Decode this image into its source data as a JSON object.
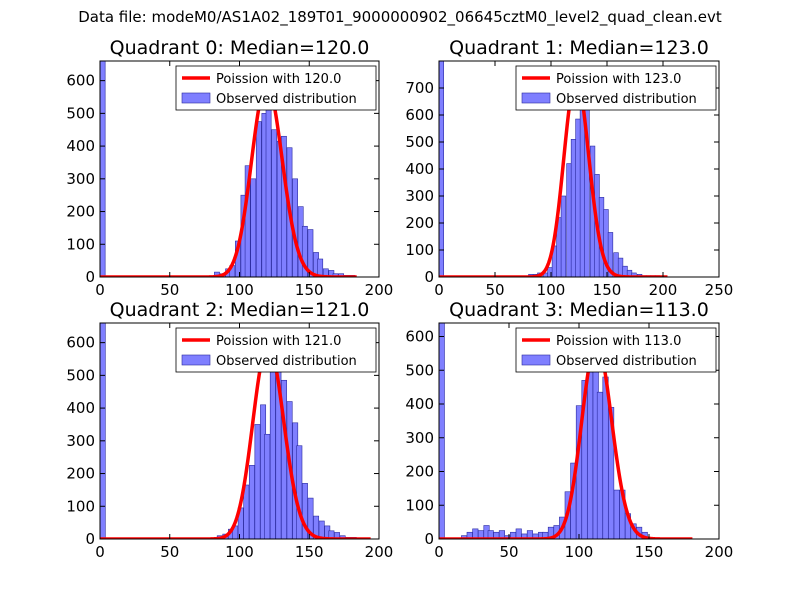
{
  "figure_title": "Data file: modeM0/AS1A02_189T01_9000000902_06645cztM0_level2_quad_clean.evt",
  "colors": {
    "bar_fill": "#7f7fff",
    "bar_edge": "#2a2aa0",
    "curve": "#ff0000",
    "axis": "#000000"
  },
  "chart_data": [
    {
      "type": "bar",
      "title": "Quadrant 0: Median=120.0",
      "median": 120.0,
      "xlim": [
        0,
        200
      ],
      "ylim": [
        0,
        660
      ],
      "xticks": [
        0,
        50,
        100,
        150,
        200
      ],
      "xtick_labels": [
        "0",
        "50",
        "100",
        "150",
        "200"
      ],
      "yticks": [
        0,
        100,
        200,
        300,
        400,
        500,
        600
      ],
      "ytick_labels": [
        "0",
        "100",
        "200",
        "300",
        "400",
        "500",
        "600"
      ],
      "bin_width": 3.7,
      "bins_x": [
        0,
        82,
        86,
        90,
        93,
        97,
        101,
        104,
        108,
        112,
        116,
        119,
        123,
        127,
        130,
        134,
        138,
        142,
        145,
        149,
        153,
        156,
        160,
        164,
        167,
        171,
        175,
        179
      ],
      "bins_y": [
        660,
        15,
        10,
        25,
        35,
        110,
        250,
        340,
        300,
        475,
        500,
        590,
        450,
        415,
        430,
        395,
        300,
        215,
        155,
        145,
        75,
        55,
        25,
        20,
        10,
        10,
        5,
        5
      ],
      "curve_lambda": 120.0,
      "curve_x_range": [
        0,
        184
      ],
      "legend": [
        "Poission with 120.0",
        "Observed distribution"
      ]
    },
    {
      "type": "bar",
      "title": "Quadrant 1: Median=123.0",
      "median": 123.0,
      "xlim": [
        0,
        250
      ],
      "ylim": [
        0,
        800
      ],
      "xticks": [
        0,
        50,
        100,
        150,
        200,
        250
      ],
      "xtick_labels": [
        "0",
        "50",
        "100",
        "150",
        "200",
        "250"
      ],
      "yticks": [
        0,
        100,
        200,
        300,
        400,
        500,
        600,
        700
      ],
      "ytick_labels": [
        "0",
        "100",
        "200",
        "300",
        "400",
        "500",
        "600",
        "700"
      ],
      "bin_width": 4.2,
      "bins_x": [
        0,
        80,
        84,
        88,
        93,
        97,
        101,
        105,
        109,
        114,
        118,
        122,
        126,
        130,
        135,
        139,
        143,
        147,
        151,
        156,
        160,
        164,
        168,
        172,
        177,
        181,
        185,
        189,
        193
      ],
      "bins_y": [
        800,
        10,
        10,
        15,
        15,
        35,
        115,
        220,
        300,
        420,
        510,
        585,
        735,
        700,
        485,
        380,
        295,
        250,
        165,
        90,
        70,
        40,
        25,
        15,
        10,
        5,
        5,
        5,
        5
      ],
      "curve_lambda": 123.0,
      "curve_x_range": [
        0,
        204
      ],
      "legend": [
        "Poission with 123.0",
        "Observed distribution"
      ]
    },
    {
      "type": "bar",
      "title": "Quadrant 2: Median=121.0",
      "median": 121.0,
      "xlim": [
        0,
        200
      ],
      "ylim": [
        0,
        660
      ],
      "xticks": [
        0,
        50,
        100,
        150,
        200
      ],
      "xtick_labels": [
        "0",
        "50",
        "100",
        "150",
        "200"
      ],
      "yticks": [
        0,
        100,
        200,
        300,
        400,
        500,
        600
      ],
      "ytick_labels": [
        "0",
        "100",
        "200",
        "300",
        "400",
        "500",
        "600"
      ],
      "bin_width": 3.8,
      "bins_x": [
        0,
        84,
        88,
        92,
        95,
        99,
        103,
        107,
        111,
        115,
        118,
        122,
        126,
        130,
        134,
        138,
        141,
        145,
        149,
        153,
        157,
        161,
        164,
        168,
        172,
        176,
        180
      ],
      "bins_y": [
        660,
        10,
        15,
        30,
        40,
        95,
        165,
        225,
        350,
        410,
        320,
        510,
        595,
        485,
        420,
        355,
        285,
        170,
        125,
        70,
        55,
        40,
        25,
        20,
        10,
        5,
        5
      ],
      "curve_lambda": 121.0,
      "curve_x_range": [
        0,
        194
      ],
      "legend": [
        "Poission with 121.0",
        "Observed distribution"
      ]
    },
    {
      "type": "bar",
      "title": "Quadrant 3: Median=113.0",
      "median": 113.0,
      "xlim": [
        0,
        200
      ],
      "ylim": [
        0,
        640
      ],
      "xticks": [
        0,
        50,
        100,
        150,
        200
      ],
      "xtick_labels": [
        "0",
        "50",
        "100",
        "150",
        "200"
      ],
      "yticks": [
        0,
        100,
        200,
        300,
        400,
        500,
        600
      ],
      "ytick_labels": [
        "0",
        "100",
        "200",
        "300",
        "400",
        "500",
        "600"
      ],
      "bin_width": 3.9,
      "bins_x": [
        0,
        16,
        20,
        24,
        28,
        32,
        35,
        39,
        43,
        47,
        51,
        55,
        59,
        63,
        67,
        71,
        74,
        78,
        82,
        86,
        90,
        94,
        98,
        102,
        106,
        110,
        113,
        117,
        121,
        125,
        129,
        133,
        137,
        141,
        145,
        149
      ],
      "bins_y": [
        640,
        10,
        20,
        30,
        25,
        40,
        25,
        20,
        25,
        10,
        20,
        30,
        15,
        25,
        15,
        20,
        20,
        35,
        40,
        65,
        140,
        225,
        395,
        470,
        495,
        580,
        435,
        480,
        390,
        145,
        145,
        75,
        45,
        35,
        20,
        5
      ],
      "curve_lambda": 113.0,
      "curve_x_range": [
        0,
        181
      ],
      "legend": [
        "Poission with 113.0",
        "Observed distribution"
      ]
    }
  ]
}
